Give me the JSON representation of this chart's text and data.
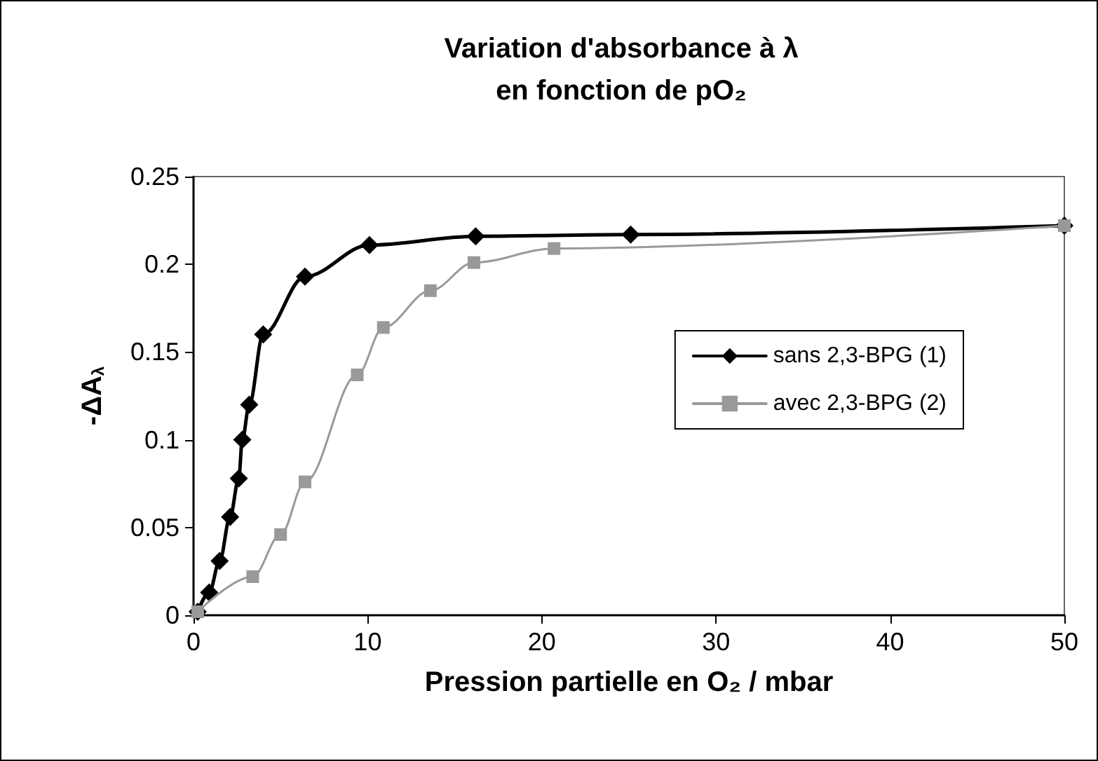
{
  "chart_data": {
    "type": "line",
    "title": "Variation d'absorbance à λ\nen fonction de pO₂",
    "xlabel": "Pression partielle en O₂ / mbar",
    "ylabel": "-ΔA$_{λ}$",
    "series": [
      {
        "name": "sans 2,3-BPG (1)",
        "color": "#000000",
        "marker": "diamond",
        "x": [
          0.24,
          0.9,
          1.5,
          2.1,
          2.6,
          2.8,
          3.2,
          4.0,
          6.4,
          10.1,
          16.2,
          25.1,
          50
        ],
        "values": [
          0.002,
          0.013,
          0.031,
          0.056,
          0.078,
          0.1,
          0.12,
          0.16,
          0.193,
          0.211,
          0.216,
          0.217,
          0.222
        ]
      },
      {
        "name": "avec 2,3-BPG (2)",
        "color": "#999999",
        "marker": "square",
        "x": [
          0.24,
          3.4,
          5.0,
          6.4,
          9.4,
          10.9,
          13.6,
          16.1,
          20.7,
          50
        ],
        "values": [
          0.002,
          0.022,
          0.046,
          0.076,
          0.137,
          0.164,
          0.185,
          0.201,
          0.209,
          0.222
        ]
      }
    ],
    "xlim": [
      0,
      50
    ],
    "xticks": [
      0,
      10,
      20,
      30,
      40,
      50
    ],
    "ylim": [
      0,
      0.25
    ],
    "yticks": [
      0,
      0.05,
      0.1,
      0.15,
      0.2,
      0.25
    ],
    "grid": false,
    "legend": "right"
  }
}
